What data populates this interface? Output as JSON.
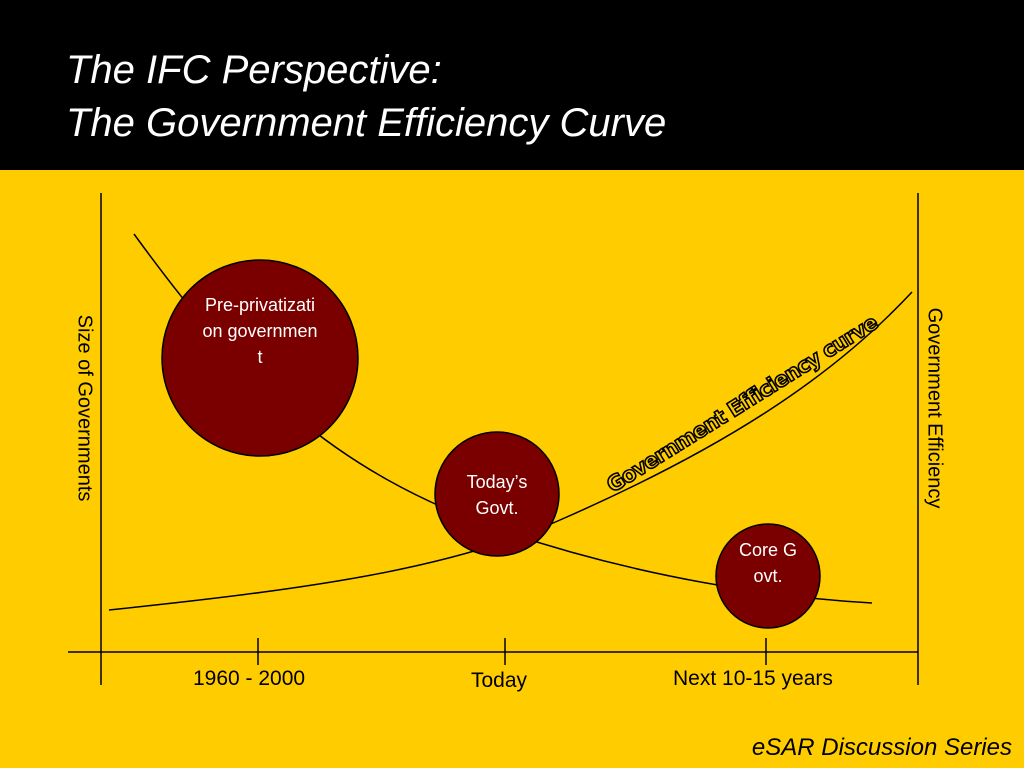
{
  "header": {
    "title_line1": "The IFC Perspective:",
    "title_line2": "The Government Efficiency Curve"
  },
  "diagram": {
    "left_axis_label": "Size of Governments",
    "right_axis_label": "Government Efficiency",
    "curve_label": "Government Efficiency curve",
    "circles": {
      "pre_privatization": "Pre-privatization government",
      "todays_govt": "Today’s Govt.",
      "core_govt": "Core Govt."
    },
    "timeline": {
      "tick1": "1960 - 2000",
      "tick2": "Today",
      "tick3": "Next 10-15 years"
    }
  },
  "footer": {
    "series": "eSAR Discussion Series"
  },
  "colors": {
    "background": "#FFCC00",
    "header": "#000000",
    "circle_fill": "#7A0000",
    "title_text": "#FFFFFF"
  }
}
